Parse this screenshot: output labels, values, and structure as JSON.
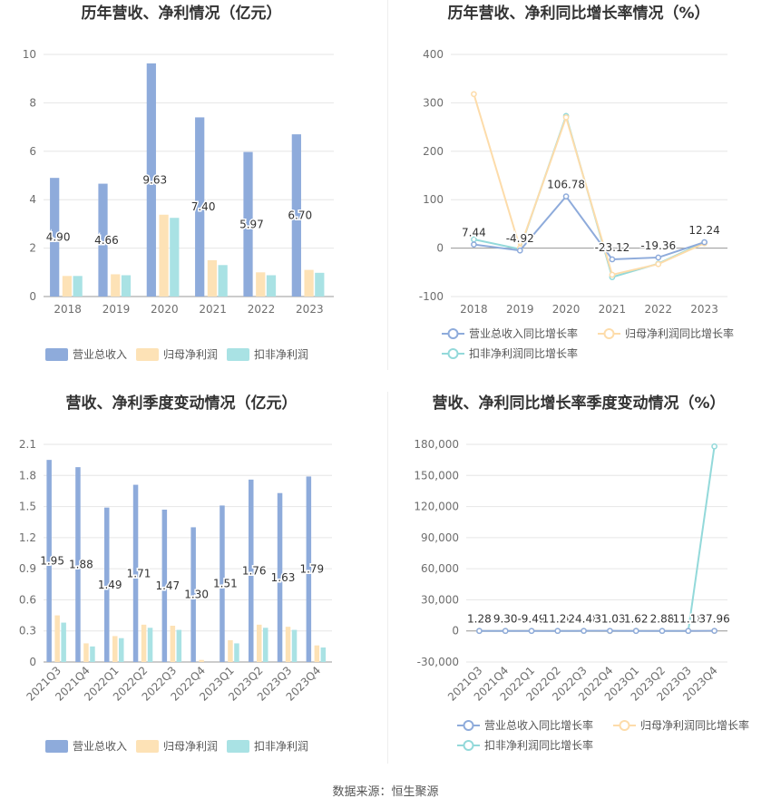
{
  "source_text": "数据来源：恒生聚源",
  "colors": {
    "revenue": "#8eabdb",
    "net_profit": "#fde2b6",
    "deducted_profit": "#a9e2e4",
    "revenue_line": "#8eabdb",
    "net_line": "#fddcaa",
    "deducted_line": "#93d9da",
    "grid": "#e6e6e6",
    "axis_text": "#6e6e6e",
    "title": "#333333"
  },
  "chart_data": [
    {
      "type": "bar",
      "title": "历年营收、净利情况（亿元）",
      "categories": [
        "2018",
        "2019",
        "2020",
        "2021",
        "2022",
        "2023"
      ],
      "series": [
        {
          "name": "营业总收入",
          "values": [
            4.9,
            4.66,
            9.63,
            7.4,
            5.97,
            6.7
          ],
          "labels": [
            "4.90",
            "4.66",
            "9.63",
            "7.40",
            "5.97",
            "6.70"
          ]
        },
        {
          "name": "归母净利润",
          "values": [
            0.85,
            0.92,
            3.38,
            1.5,
            1.0,
            1.1
          ]
        },
        {
          "name": "扣非净利润",
          "values": [
            0.85,
            0.88,
            3.25,
            1.3,
            0.88,
            0.98
          ]
        }
      ],
      "ylim": [
        0,
        10
      ],
      "yticks": [
        "0",
        "2",
        "4",
        "6",
        "8",
        "10"
      ],
      "grid": true,
      "legend": "bottom"
    },
    {
      "type": "line",
      "title": "历年营收、净利同比增长率情况（%）",
      "categories": [
        "2018",
        "2019",
        "2020",
        "2021",
        "2022",
        "2023"
      ],
      "series": [
        {
          "name": "营业总收入同比增长率",
          "values": [
            7.44,
            -4.92,
            106.78,
            -23.12,
            -19.36,
            12.24
          ],
          "labels": [
            "7.44",
            "-4.92",
            "106.78",
            "-23.12",
            "-19.36",
            "12.24"
          ]
        },
        {
          "name": "归母净利润同比增长率",
          "values": [
            318,
            0,
            270,
            -55,
            -33,
            10
          ]
        },
        {
          "name": "扣非净利润同比增长率",
          "values": [
            18,
            -2,
            273,
            -60,
            -32,
            12
          ]
        }
      ],
      "ylim": [
        -100,
        400
      ],
      "yticks": [
        "-100",
        "0",
        "100",
        "200",
        "300",
        "400"
      ],
      "grid": true,
      "legend": "bottom"
    },
    {
      "type": "bar",
      "title": "营收、净利季度变动情况（亿元）",
      "categories": [
        "2021Q3",
        "2021Q4",
        "2022Q1",
        "2022Q2",
        "2022Q3",
        "2022Q4",
        "2023Q1",
        "2023Q2",
        "2023Q3",
        "2023Q4"
      ],
      "series": [
        {
          "name": "营业总收入",
          "values": [
            1.95,
            1.88,
            1.49,
            1.71,
            1.47,
            1.3,
            1.51,
            1.76,
            1.63,
            1.79
          ],
          "labels": [
            "1.95",
            "1.88",
            "1.49",
            "1.71",
            "1.47",
            "1.30",
            "1.51",
            "1.76",
            "1.63",
            "1.79"
          ]
        },
        {
          "name": "归母净利润",
          "values": [
            0.45,
            0.18,
            0.25,
            0.36,
            0.35,
            0.02,
            0.21,
            0.36,
            0.34,
            0.16
          ]
        },
        {
          "name": "扣非净利润",
          "values": [
            0.38,
            0.15,
            0.23,
            0.33,
            0.31,
            0.0,
            0.18,
            0.33,
            0.31,
            0.14
          ]
        }
      ],
      "ylim": [
        0,
        2.1
      ],
      "yticks": [
        "0",
        "0.3",
        "0.6",
        "0.9",
        "1.2",
        "1.5",
        "1.8",
        "2.1"
      ],
      "grid": true,
      "legend": "bottom"
    },
    {
      "type": "line",
      "title": "营收、净利同比增长率季度变动情况（%）",
      "categories": [
        "2021Q3",
        "2021Q4",
        "2022Q1",
        "2022Q2",
        "2022Q3",
        "2022Q4",
        "2023Q1",
        "2023Q2",
        "2023Q3",
        "2023Q4"
      ],
      "series": [
        {
          "name": "营业总收入同比增长率",
          "values": [
            1.28,
            9.3,
            -9.49,
            11.2,
            24.48,
            31.03,
            1.62,
            2.88,
            11.18,
            37.96
          ],
          "labels": [
            "1.28",
            "9.30",
            "-9.49",
            "11.20",
            "24.48",
            "31.03",
            "1.62",
            "2.88",
            "11.18",
            "37.96"
          ]
        },
        {
          "name": "归母净利润同比增长率",
          "values": [
            10,
            -40,
            30,
            15,
            20,
            -95,
            60,
            5,
            3,
            -40
          ]
        },
        {
          "name": "扣非净利润同比增长率",
          "values": [
            8,
            -45,
            25,
            12,
            18,
            -100,
            55,
            4,
            2,
            178000
          ]
        }
      ],
      "ylim": [
        -30000,
        180000
      ],
      "yticks": [
        "-30,000",
        "0",
        "30,000",
        "60,000",
        "90,000",
        "120,000",
        "150,000",
        "180,000"
      ],
      "grid": true,
      "legend": "bottom"
    }
  ]
}
